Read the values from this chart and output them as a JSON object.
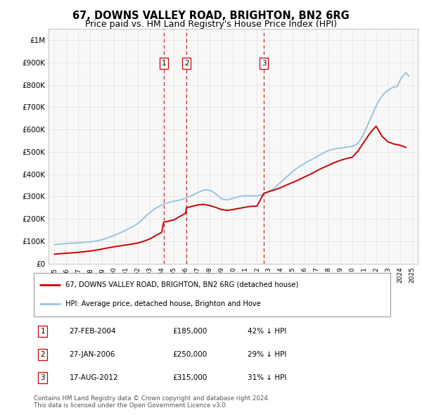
{
  "title": "67, DOWNS VALLEY ROAD, BRIGHTON, BN2 6RG",
  "subtitle": "Price paid vs. HM Land Registry's House Price Index (HPI)",
  "hpi_years": [
    1995,
    1995.25,
    1995.5,
    1995.75,
    1996,
    1996.25,
    1996.5,
    1996.75,
    1997,
    1997.25,
    1997.5,
    1997.75,
    1998,
    1998.25,
    1998.5,
    1998.75,
    1999,
    1999.25,
    1999.5,
    1999.75,
    2000,
    2000.25,
    2000.5,
    2000.75,
    2001,
    2001.25,
    2001.5,
    2001.75,
    2002,
    2002.25,
    2002.5,
    2002.75,
    2003,
    2003.25,
    2003.5,
    2003.75,
    2004,
    2004.25,
    2004.5,
    2004.75,
    2005,
    2005.25,
    2005.5,
    2005.75,
    2006,
    2006.25,
    2006.5,
    2006.75,
    2007,
    2007.25,
    2007.5,
    2007.75,
    2008,
    2008.25,
    2008.5,
    2008.75,
    2009,
    2009.25,
    2009.5,
    2009.75,
    2010,
    2010.25,
    2010.5,
    2010.75,
    2011,
    2011.25,
    2011.5,
    2011.75,
    2012,
    2012.25,
    2012.5,
    2012.75,
    2013,
    2013.25,
    2013.5,
    2013.75,
    2014,
    2014.25,
    2014.5,
    2014.75,
    2015,
    2015.25,
    2015.5,
    2015.75,
    2016,
    2016.25,
    2016.5,
    2016.75,
    2017,
    2017.25,
    2017.5,
    2017.75,
    2018,
    2018.25,
    2018.5,
    2018.75,
    2019,
    2019.25,
    2019.5,
    2019.75,
    2020,
    2020.25,
    2020.5,
    2020.75,
    2021,
    2021.25,
    2021.5,
    2021.75,
    2022,
    2022.25,
    2022.5,
    2022.75,
    2023,
    2023.25,
    2023.5,
    2023.75,
    2024,
    2024.25,
    2024.5,
    2024.75
  ],
  "hpi_values": [
    85000,
    86000,
    87000,
    88000,
    89000,
    90000,
    91000,
    92000,
    93000,
    94000,
    95000,
    96000,
    97000,
    99000,
    101000,
    104000,
    107000,
    111000,
    116000,
    121000,
    126000,
    131000,
    137000,
    143000,
    150000,
    157000,
    164000,
    171000,
    179000,
    191000,
    203000,
    217000,
    228000,
    238000,
    248000,
    255000,
    262000,
    268000,
    272000,
    276000,
    279000,
    281000,
    284000,
    288000,
    292000,
    298000,
    304000,
    310000,
    317000,
    323000,
    328000,
    330000,
    328000,
    323000,
    314000,
    302000,
    291000,
    287000,
    285000,
    288000,
    292000,
    296000,
    300000,
    302000,
    303000,
    303000,
    303000,
    303000,
    303000,
    305000,
    309000,
    315000,
    322000,
    330000,
    340000,
    352000,
    364000,
    376000,
    388000,
    400000,
    412000,
    422000,
    432000,
    440000,
    448000,
    456000,
    463000,
    470000,
    477000,
    485000,
    493000,
    500000,
    506000,
    510000,
    513000,
    515000,
    517000,
    519000,
    521000,
    523000,
    525000,
    530000,
    540000,
    560000,
    585000,
    615000,
    645000,
    675000,
    705000,
    730000,
    750000,
    765000,
    775000,
    785000,
    790000,
    792000,
    820000,
    840000,
    855000,
    840000
  ],
  "price_years": [
    1995,
    1995.5,
    1996,
    1996.5,
    1997,
    1997.5,
    1998,
    1998.5,
    1999,
    1999.5,
    2000,
    2000.5,
    2001,
    2001.5,
    2002,
    2002.5,
    2003,
    2003.5,
    2004,
    2004.17,
    2005,
    2005.5,
    2006,
    2006.08,
    2007,
    2007.5,
    2008,
    2008.5,
    2009,
    2009.5,
    2010,
    2010.5,
    2011,
    2011.5,
    2012,
    2012.58,
    2013,
    2013.5,
    2014,
    2014.5,
    2015,
    2015.5,
    2016,
    2016.5,
    2017,
    2017.5,
    2018,
    2018.5,
    2019,
    2019.5,
    2020,
    2020.5,
    2021,
    2021.5,
    2022,
    2022.5,
    2023,
    2023.5,
    2024,
    2024.5
  ],
  "price_values": [
    42000,
    44000,
    46000,
    48000,
    50000,
    53000,
    56000,
    60000,
    65000,
    70000,
    75000,
    79000,
    83000,
    87000,
    92000,
    100000,
    110000,
    125000,
    140000,
    185000,
    195000,
    210000,
    225000,
    250000,
    262000,
    265000,
    260000,
    252000,
    242000,
    238000,
    242000,
    247000,
    252000,
    256000,
    257000,
    315000,
    322000,
    330000,
    340000,
    352000,
    363000,
    375000,
    388000,
    400000,
    415000,
    428000,
    440000,
    452000,
    462000,
    470000,
    476000,
    505000,
    545000,
    585000,
    615000,
    570000,
    545000,
    535000,
    530000,
    520000
  ],
  "sale_points": [
    {
      "year": 2004.17,
      "price": 185000,
      "label": "1"
    },
    {
      "year": 2006.08,
      "price": 250000,
      "label": "2"
    },
    {
      "year": 2012.58,
      "price": 315000,
      "label": "3"
    }
  ],
  "legend_entries": [
    {
      "label": "67, DOWNS VALLEY ROAD, BRIGHTON, BN2 6RG (detached house)",
      "color": "#cc0000"
    },
    {
      "label": "HPI: Average price, detached house, Brighton and Hove",
      "color": "#99c4e0"
    }
  ],
  "table_rows": [
    {
      "num": "1",
      "date": "27-FEB-2004",
      "price": "£185,000",
      "hpi": "42% ↓ HPI"
    },
    {
      "num": "2",
      "date": "27-JAN-2006",
      "price": "£250,000",
      "hpi": "29% ↓ HPI"
    },
    {
      "num": "3",
      "date": "17-AUG-2012",
      "price": "£315,000",
      "hpi": "31% ↓ HPI"
    }
  ],
  "footnote": "Contains HM Land Registry data © Crown copyright and database right 2024.\nThis data is licensed under the Open Government Licence v3.0.",
  "ylim": [
    0,
    1050000
  ],
  "yticks": [
    0,
    100000,
    200000,
    300000,
    400000,
    500000,
    600000,
    700000,
    800000,
    900000,
    1000000
  ],
  "ytick_labels": [
    "£0",
    "£100K",
    "£200K",
    "£300K",
    "£400K",
    "£500K",
    "£600K",
    "£700K",
    "£800K",
    "£900K",
    "£1M"
  ],
  "xlim_start": 1994.5,
  "xlim_end": 2025.5,
  "background_color": "#f8f8f8",
  "grid_color": "#e0e0e0",
  "vline_color": "#cc0000",
  "hpi_line_color": "#99c4e0",
  "price_line_color": "#cc0000",
  "title_fontsize": 10.5,
  "subtitle_fontsize": 9
}
